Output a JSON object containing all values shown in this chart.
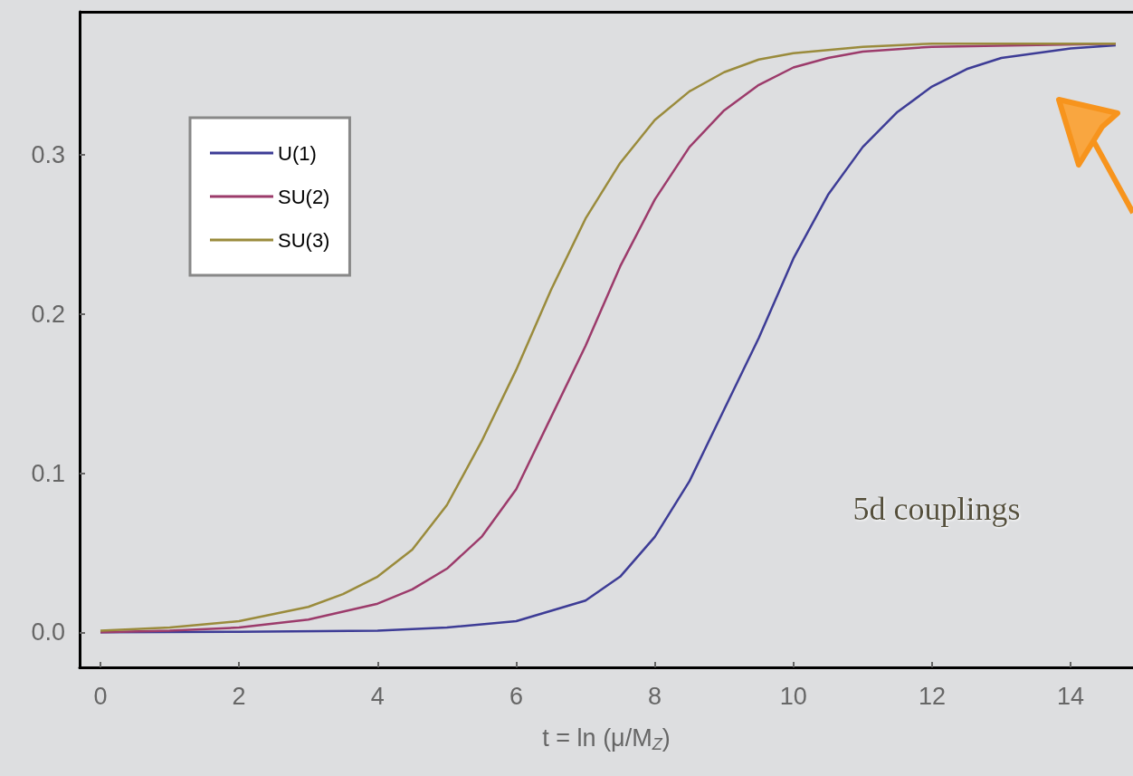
{
  "chart_data": {
    "type": "line",
    "xlabel": "t = ln (μ/M$_{Z}$)",
    "xlim": [
      -0.3,
      14.9
    ],
    "xticks": [
      0,
      2,
      4,
      6,
      8,
      10,
      12,
      14
    ],
    "ylim": [
      -0.022,
      0.39
    ],
    "yticks": [
      {
        "value": 0,
        "label": "0.0"
      },
      0.1,
      0.2,
      0.3
    ],
    "legend": "top left",
    "marker": "none",
    "line_style": "solid",
    "annotations": [
      "5d couplings"
    ],
    "series": [
      {
        "name": "U(1)",
        "color": "#3d3c96",
        "x": [
          0,
          2,
          4,
          5,
          6,
          7,
          7.5,
          8,
          8.5,
          9,
          9.5,
          10,
          10.5,
          11,
          11.5,
          12,
          12.5,
          13,
          14,
          14.65
        ],
        "values": [
          0,
          0.0003,
          0.001,
          0.003,
          0.007,
          0.02,
          0.035,
          0.06,
          0.095,
          0.14,
          0.185,
          0.235,
          0.275,
          0.305,
          0.327,
          0.343,
          0.354,
          0.361,
          0.367,
          0.369
        ]
      },
      {
        "name": "SU(2)",
        "color": "#9c3b6b",
        "x": [
          0,
          1,
          2,
          3,
          4,
          4.5,
          5,
          5.5,
          6,
          6.5,
          7,
          7.5,
          8,
          8.5,
          9,
          9.5,
          10,
          10.5,
          11,
          12,
          14.65
        ],
        "values": [
          0,
          0.001,
          0.003,
          0.008,
          0.018,
          0.027,
          0.04,
          0.06,
          0.09,
          0.135,
          0.18,
          0.23,
          0.272,
          0.305,
          0.328,
          0.344,
          0.355,
          0.361,
          0.365,
          0.368,
          0.37
        ]
      },
      {
        "name": "SU(3)",
        "color": "#9a8b3c",
        "x": [
          0,
          1,
          2,
          3,
          3.5,
          4,
          4.5,
          5,
          5.5,
          6,
          6.5,
          7,
          7.5,
          8,
          8.5,
          9,
          9.5,
          10,
          11,
          12,
          14.65
        ],
        "values": [
          0.001,
          0.003,
          0.007,
          0.016,
          0.024,
          0.035,
          0.052,
          0.08,
          0.12,
          0.165,
          0.215,
          0.26,
          0.295,
          0.322,
          0.34,
          0.352,
          0.36,
          0.364,
          0.368,
          0.37,
          0.37
        ]
      }
    ]
  }
}
